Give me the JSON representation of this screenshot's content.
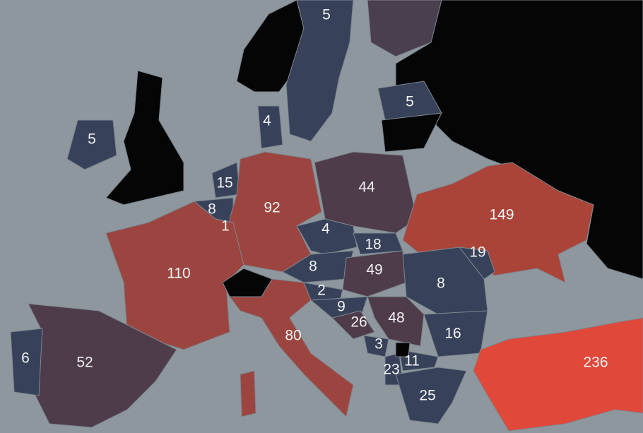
{
  "labels": [
    5,
    5,
    4,
    5,
    15,
    92,
    44,
    149,
    8,
    1,
    4,
    18,
    19,
    110,
    8,
    49,
    8,
    2,
    9,
    26,
    48,
    16,
    80,
    6,
    52,
    3,
    11,
    23,
    25,
    236
  ]
}
